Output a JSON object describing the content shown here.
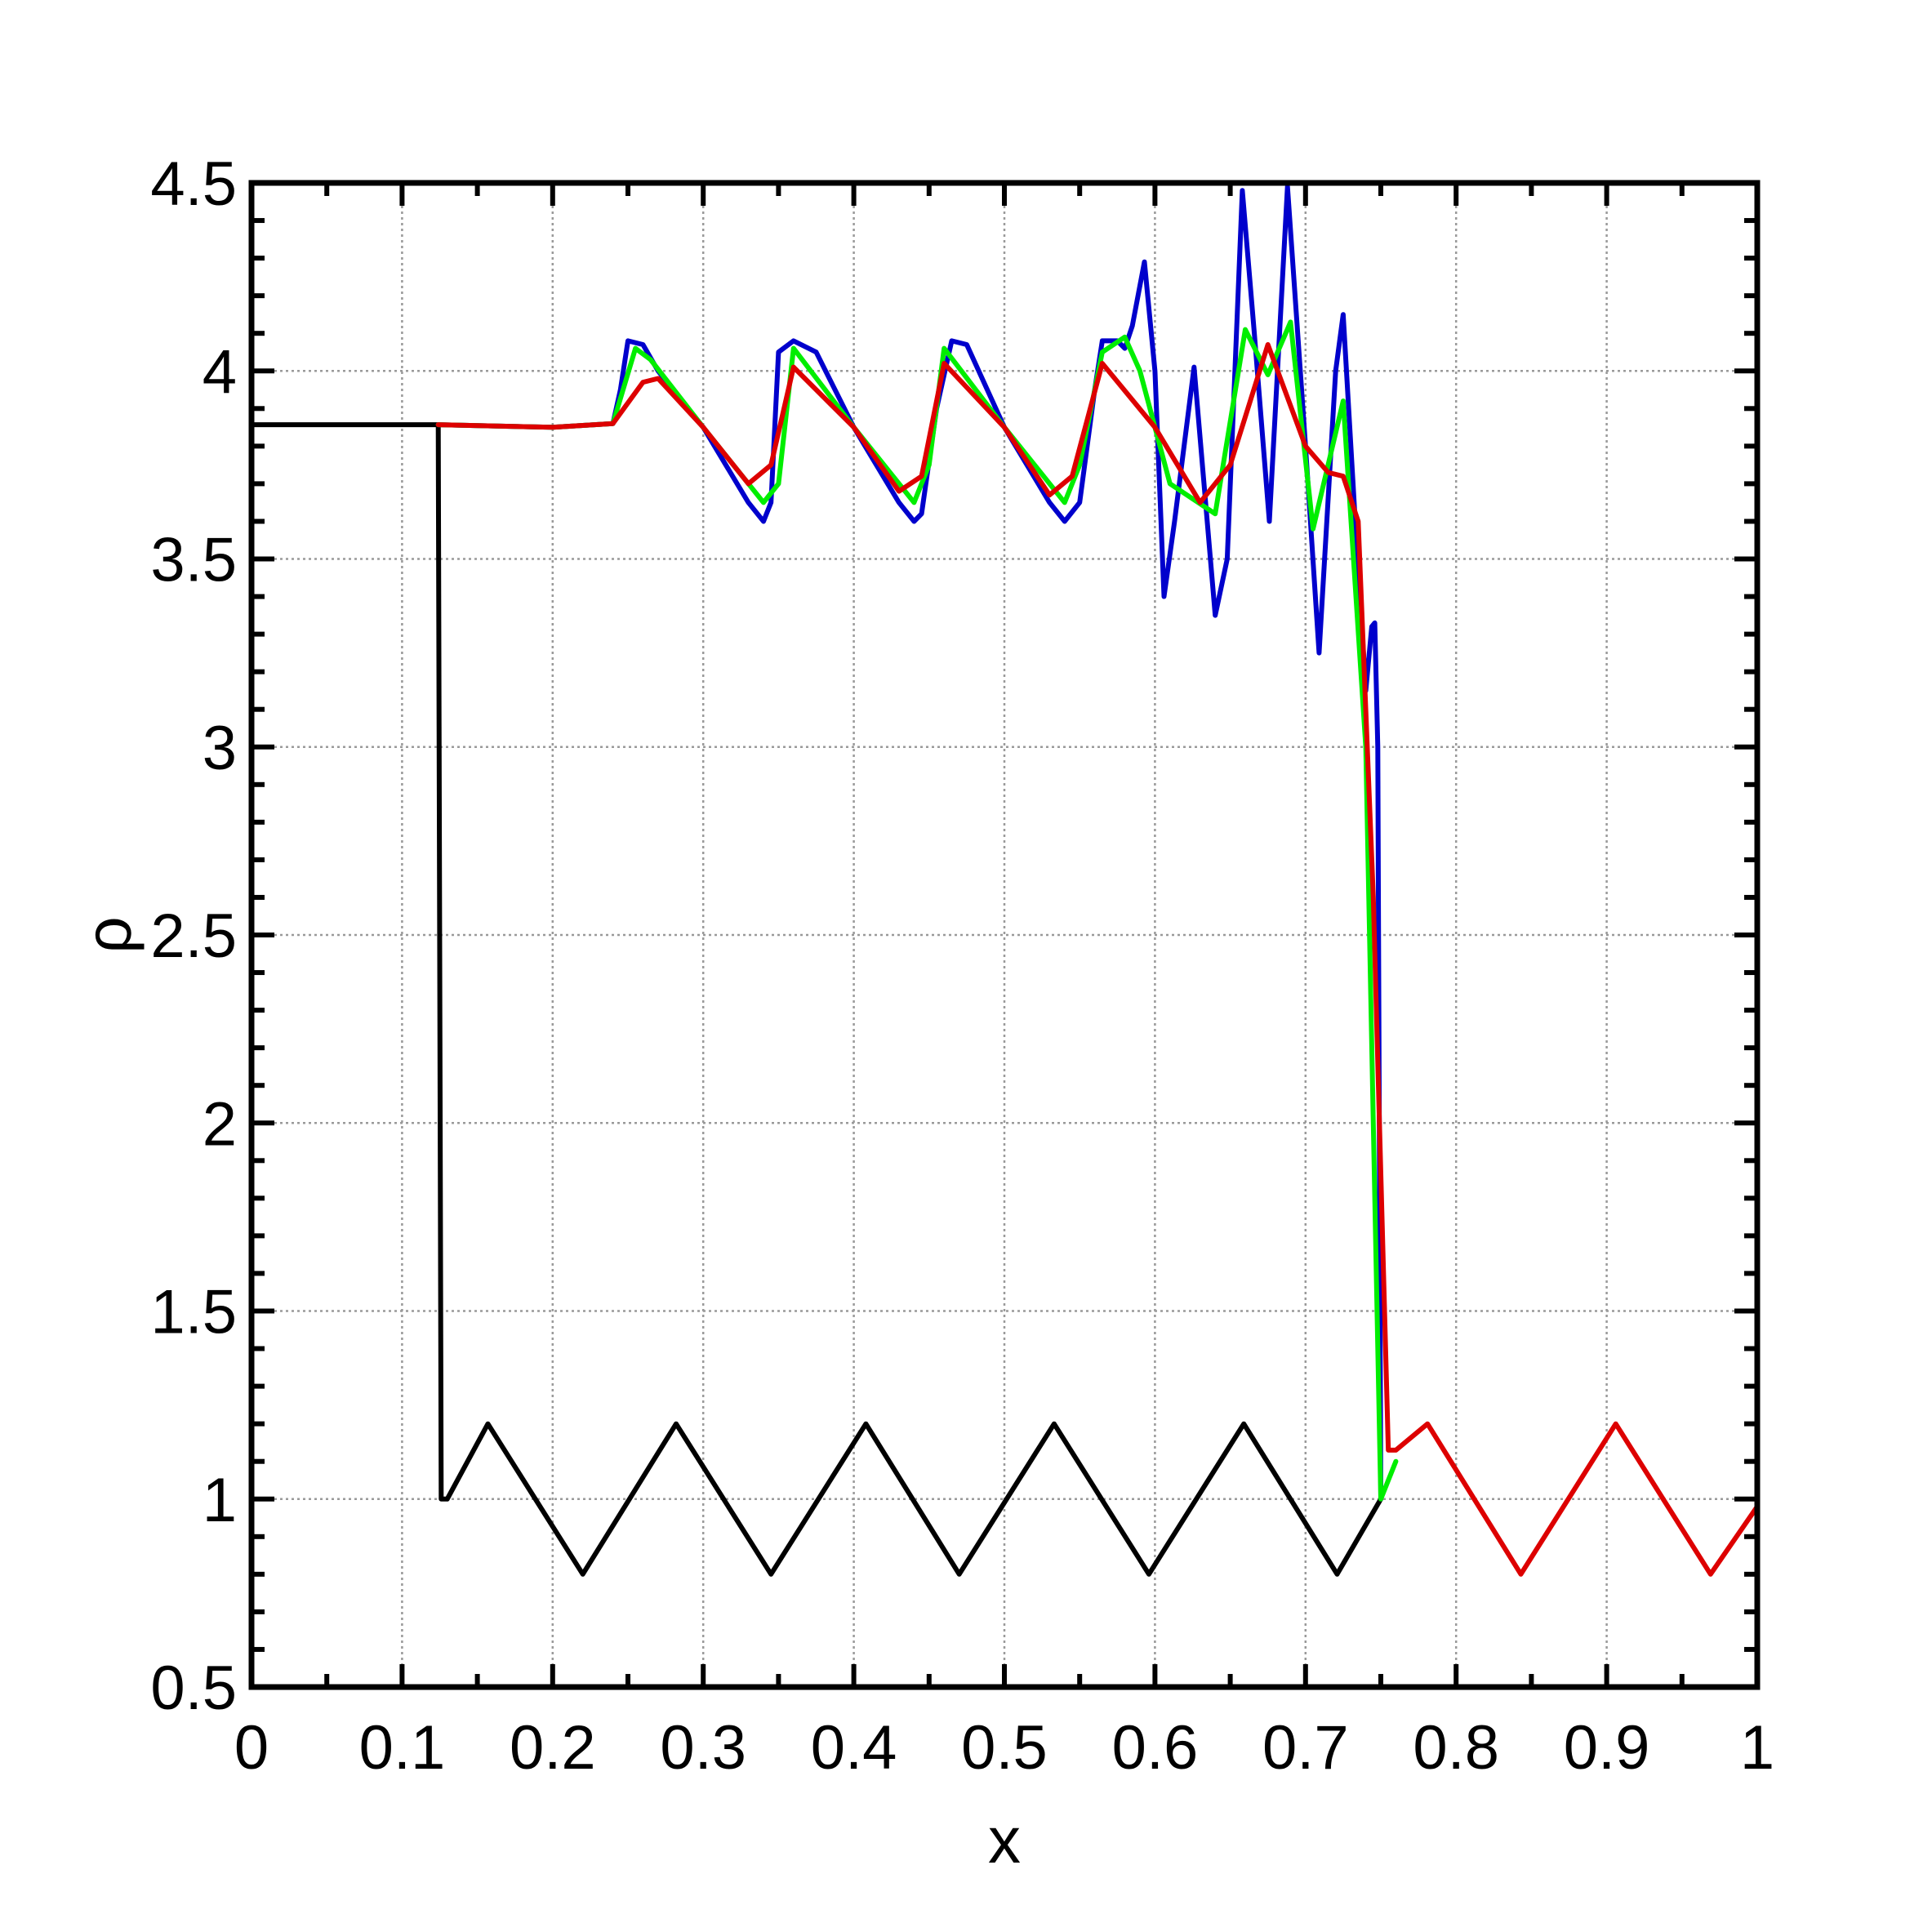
{
  "chart_data": {
    "type": "line",
    "xlabel": "x",
    "ylabel": "ρ",
    "xlim": [
      0,
      1
    ],
    "ylim": [
      0.5,
      4.5
    ],
    "xticks": [
      "0",
      "0.1",
      "0.2",
      "0.3",
      "0.4",
      "0.5",
      "0.6",
      "0.7",
      "0.8",
      "0.9",
      "1"
    ],
    "yticks": [
      "0.5",
      "1",
      "1.5",
      "2",
      "2.5",
      "3",
      "3.5",
      "4",
      "4.5"
    ],
    "grid": true,
    "legend": "none",
    "series": [
      {
        "color": "#000000",
        "x": [
          0,
          0.124,
          0.126,
          0.13,
          0.157,
          0.22,
          0.282,
          0.345,
          0.408,
          0.47,
          0.533,
          0.596,
          0.659,
          0.721,
          0.75
        ],
        "y": [
          3.857,
          3.857,
          1.0,
          1.0,
          1.2,
          0.8,
          1.2,
          0.8,
          1.2,
          0.8,
          1.2,
          0.8,
          1.2,
          0.8,
          1.0
        ]
      },
      {
        "color": "#0000cc",
        "x": [
          0.124,
          0.2,
          0.24,
          0.245,
          0.25,
          0.26,
          0.27,
          0.3,
          0.33,
          0.34,
          0.345,
          0.35,
          0.36,
          0.375,
          0.4,
          0.43,
          0.44,
          0.445,
          0.455,
          0.465,
          0.475,
          0.5,
          0.53,
          0.54,
          0.55,
          0.56,
          0.565,
          0.575,
          0.58,
          0.585,
          0.593,
          0.6,
          0.606,
          0.613,
          0.626,
          0.64,
          0.648,
          0.658,
          0.666,
          0.676,
          0.688,
          0.7,
          0.709,
          0.72,
          0.725,
          0.733,
          0.74,
          0.744,
          0.746,
          0.748,
          0.75
        ],
        "y": [
          3.857,
          3.85,
          3.86,
          3.95,
          4.08,
          4.07,
          4.0,
          3.85,
          3.65,
          3.6,
          3.65,
          4.05,
          4.08,
          4.05,
          3.85,
          3.65,
          3.6,
          3.62,
          3.9,
          4.08,
          4.07,
          3.85,
          3.65,
          3.6,
          3.65,
          3.95,
          4.08,
          4.08,
          4.06,
          4.12,
          4.29,
          4.0,
          3.4,
          3.6,
          4.01,
          3.35,
          3.5,
          4.48,
          4.1,
          3.6,
          4.49,
          3.8,
          3.25,
          4.0,
          4.15,
          3.6,
          3.15,
          3.32,
          3.33,
          3.0,
          1.0
        ]
      },
      {
        "color": "#00ee00",
        "x": [
          0.124,
          0.2,
          0.24,
          0.255,
          0.265,
          0.3,
          0.34,
          0.35,
          0.36,
          0.4,
          0.44,
          0.45,
          0.46,
          0.5,
          0.54,
          0.55,
          0.565,
          0.58,
          0.59,
          0.61,
          0.64,
          0.66,
          0.675,
          0.69,
          0.705,
          0.725,
          0.74,
          0.75,
          0.76
        ],
        "y": [
          3.857,
          3.85,
          3.86,
          4.06,
          4.03,
          3.85,
          3.65,
          3.7,
          4.06,
          3.85,
          3.65,
          3.75,
          4.06,
          3.85,
          3.65,
          3.75,
          4.05,
          4.09,
          4.0,
          3.7,
          3.62,
          4.11,
          3.99,
          4.13,
          3.58,
          3.92,
          3.0,
          1.0,
          1.1
        ]
      },
      {
        "color": "#dd0000",
        "x": [
          0.124,
          0.2,
          0.24,
          0.26,
          0.27,
          0.3,
          0.33,
          0.345,
          0.36,
          0.4,
          0.43,
          0.445,
          0.46,
          0.5,
          0.53,
          0.545,
          0.565,
          0.6,
          0.63,
          0.65,
          0.675,
          0.7,
          0.715,
          0.725,
          0.735,
          0.745,
          0.755,
          0.76,
          0.781,
          0.843,
          0.906,
          0.969,
          1.0
        ],
        "y": [
          3.857,
          3.85,
          3.86,
          3.97,
          3.98,
          3.85,
          3.7,
          3.75,
          4.01,
          3.85,
          3.68,
          3.72,
          4.02,
          3.85,
          3.67,
          3.72,
          4.02,
          3.85,
          3.65,
          3.75,
          4.07,
          3.8,
          3.73,
          3.72,
          3.6,
          2.6,
          1.13,
          1.13,
          1.2,
          0.8,
          1.2,
          0.8,
          0.98
        ]
      }
    ]
  }
}
